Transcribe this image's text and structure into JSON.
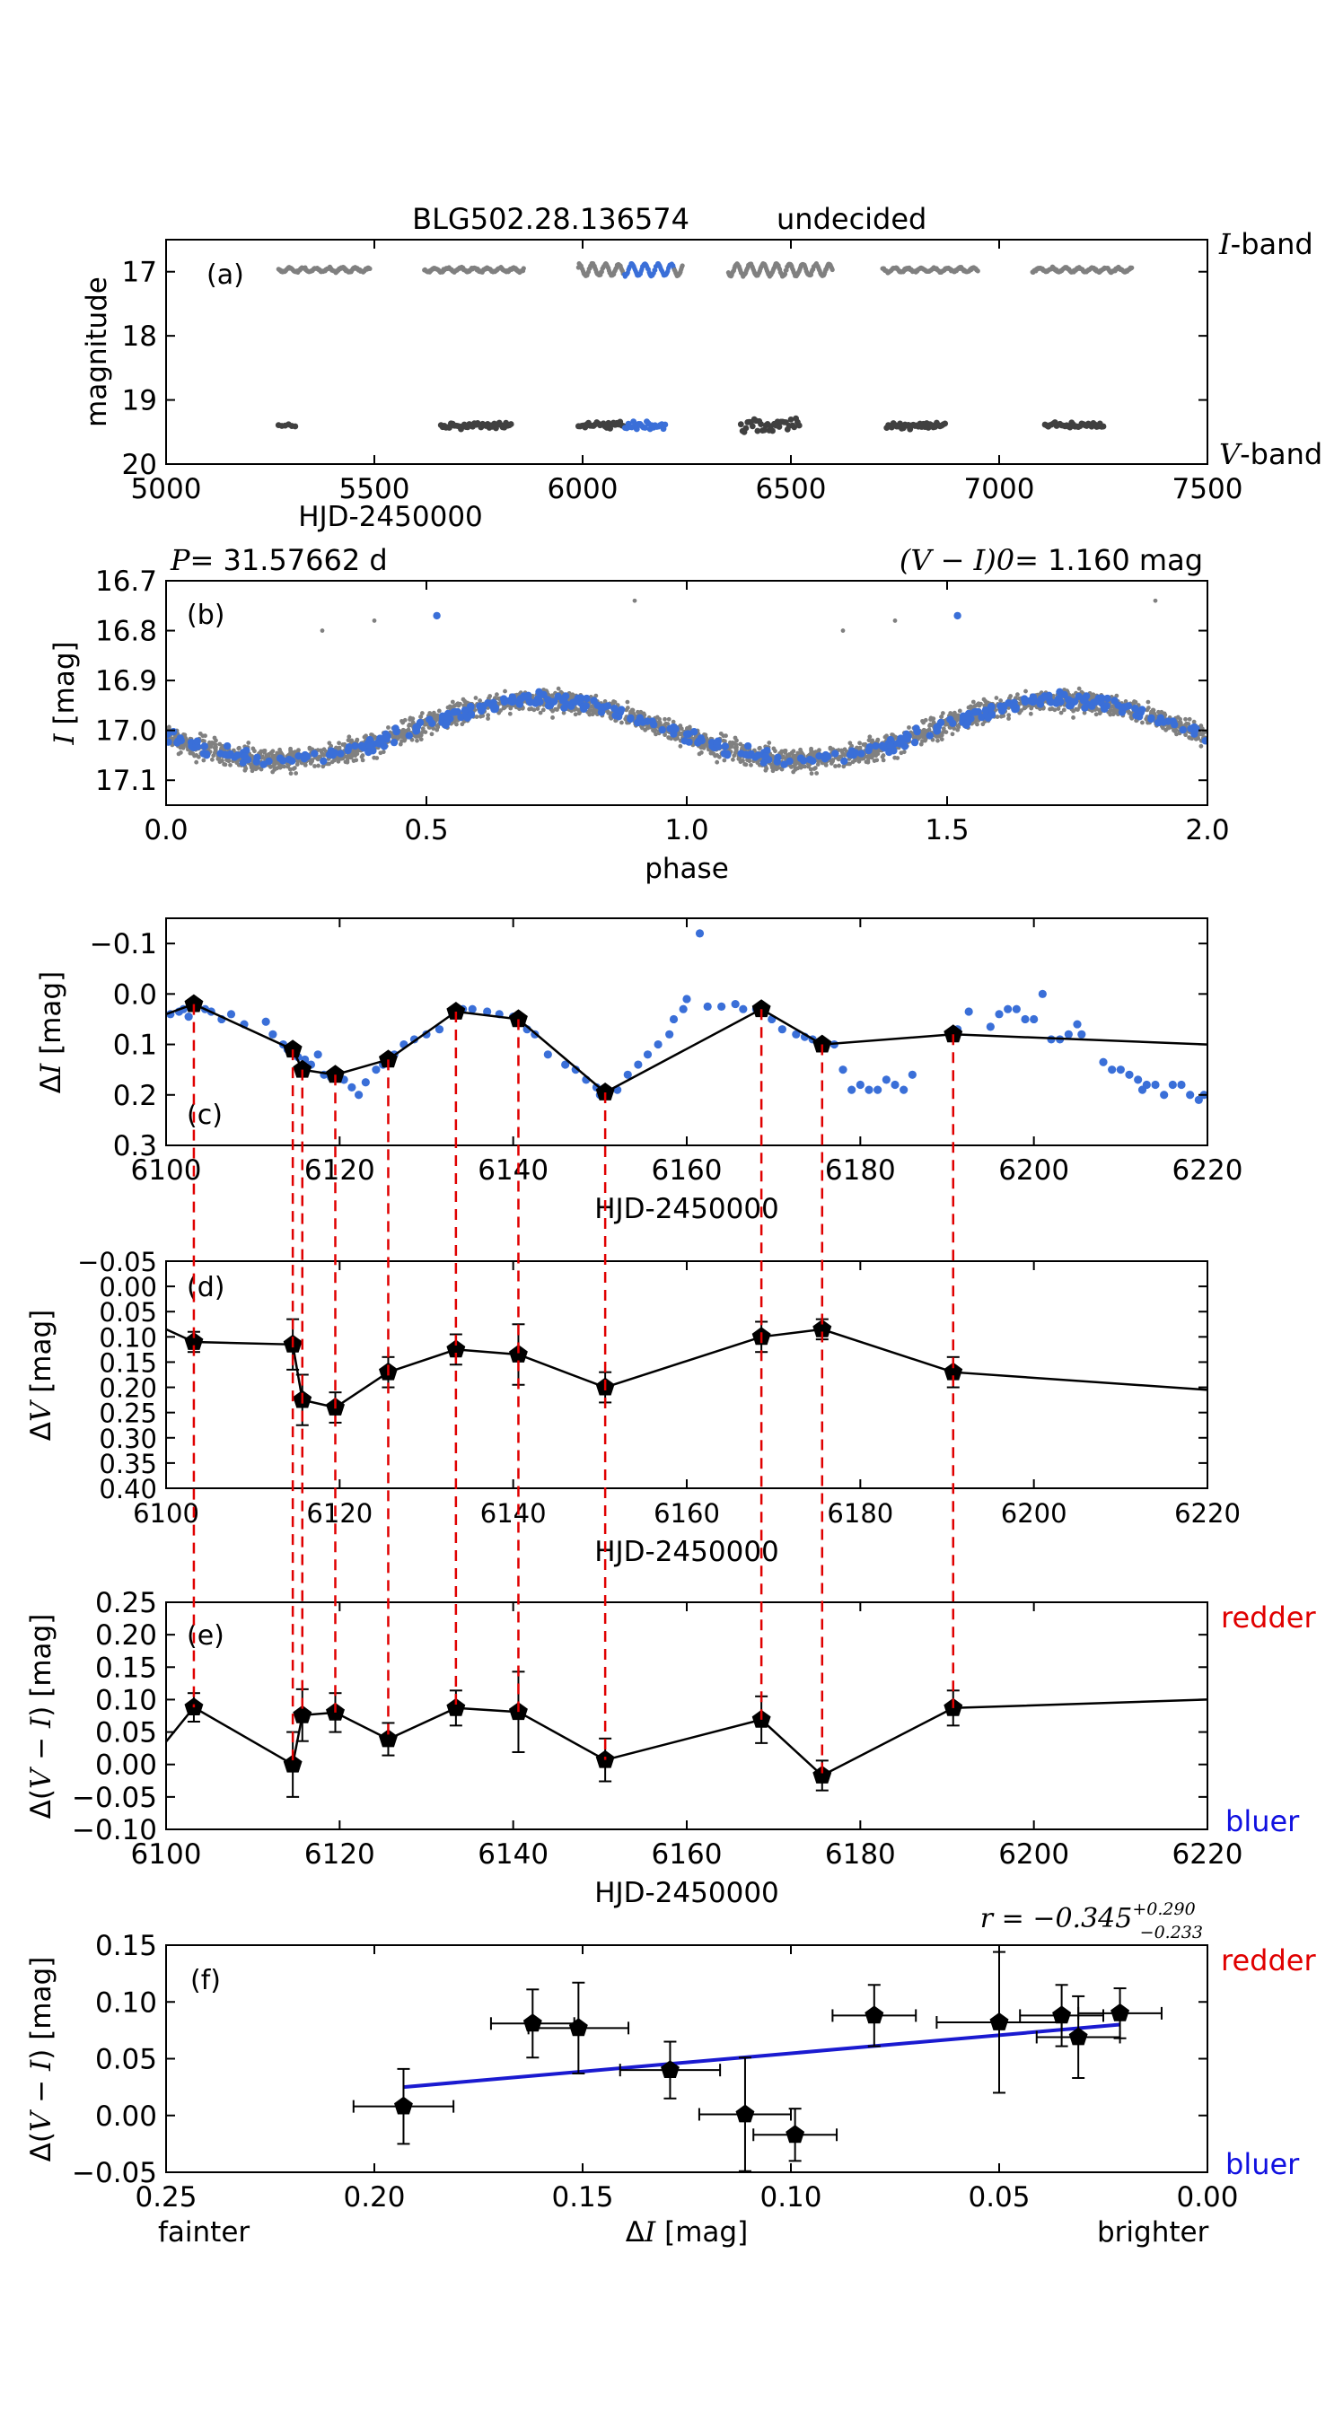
{
  "chart_data": [
    {
      "id": "a",
      "type": "scatter",
      "title": "BLG502.28.136574",
      "status": "undecided",
      "panel_label": "(a)",
      "xlabel": "HJD-2450000",
      "ylabel": "magnitude",
      "xlim": [
        5000,
        7500
      ],
      "ylim": [
        20,
        16.5
      ],
      "inverted_y": true,
      "xticks": [
        "5000",
        "5500",
        "6000",
        "6500",
        "7000",
        "7500"
      ],
      "yticks": [
        "17",
        "18",
        "19",
        "20"
      ],
      "band_labels": [
        "I-band",
        "V-band"
      ],
      "colors": {
        "i_band": "#808080",
        "v_band": "#404040",
        "highlight": "#3a6fd8"
      },
      "seasons_i": [
        [
          5270,
          5490
        ],
        [
          5620,
          5860
        ],
        [
          5990,
          6240
        ],
        [
          6350,
          6600
        ],
        [
          6720,
          6950
        ],
        [
          7080,
          7320
        ]
      ],
      "highlight_window": [
        6100,
        6220
      ],
      "seasons_v": [
        [
          5270,
          5310
        ],
        [
          5660,
          5830
        ],
        [
          5990,
          6200
        ],
        [
          6380,
          6520
        ],
        [
          6730,
          6870
        ],
        [
          7110,
          7250
        ]
      ],
      "i_mean": 16.97,
      "v_mean": 19.4
    },
    {
      "id": "b",
      "type": "scatter",
      "panel_label": "(b)",
      "period_label": "P",
      "period_value": "= 31.57662 d",
      "color_label": "(V − I)0",
      "color_value": "= 1.160 mag",
      "xlabel": "phase",
      "ylabel": "I [mag]",
      "xlim": [
        0,
        2
      ],
      "ylim": [
        17.15,
        16.7
      ],
      "xticks": [
        "0.0",
        "0.5",
        "1.0",
        "1.5",
        "2.0"
      ],
      "yticks": [
        "16.7",
        "16.8",
        "16.9",
        "17.0",
        "17.1"
      ],
      "mean_mag": 17.0,
      "amplitude": 0.06,
      "phase_of_max": 0.72
    },
    {
      "id": "c",
      "type": "line",
      "panel_label": "(c)",
      "xlabel": "HJD-2450000",
      "ylabel": "ΔI [mag]",
      "xlim": [
        6100,
        6220
      ],
      "ylim": [
        0.3,
        -0.15
      ],
      "xticks": [
        "6100",
        "6120",
        "6140",
        "6160",
        "6180",
        "6200",
        "6220"
      ],
      "yticks": [
        "−0.1",
        "0.0",
        "0.1",
        "0.2",
        "0.3"
      ],
      "epochs": [
        {
          "x": 6103.2,
          "y": 0.02
        },
        {
          "x": 6114.6,
          "y": 0.11
        },
        {
          "x": 6115.7,
          "y": 0.15
        },
        {
          "x": 6119.5,
          "y": 0.16
        },
        {
          "x": 6125.6,
          "y": 0.13
        },
        {
          "x": 6133.4,
          "y": 0.035
        },
        {
          "x": 6140.6,
          "y": 0.05
        },
        {
          "x": 6150.6,
          "y": 0.195
        },
        {
          "x": 6168.6,
          "y": 0.03
        },
        {
          "x": 6175.6,
          "y": 0.1
        },
        {
          "x": 6190.7,
          "y": 0.08
        }
      ],
      "line_ends": [
        {
          "x": 6100,
          "y": 0.04
        },
        {
          "x": 6220,
          "y": 0.1
        }
      ],
      "dots": [
        [
          6100.5,
          0.04
        ],
        [
          6101.5,
          0.035
        ],
        [
          6102.0,
          0.03
        ],
        [
          6102.6,
          0.045
        ],
        [
          6103.6,
          0.025
        ],
        [
          6104.5,
          0.03
        ],
        [
          6105.2,
          0.035
        ],
        [
          6106.4,
          0.05
        ],
        [
          6107.5,
          0.04
        ],
        [
          6109.0,
          0.06
        ],
        [
          6111.5,
          0.055
        ],
        [
          6112.3,
          0.08
        ],
        [
          6113.5,
          0.1
        ],
        [
          6114.0,
          0.11
        ],
        [
          6115.2,
          0.125
        ],
        [
          6116.0,
          0.13
        ],
        [
          6116.7,
          0.14
        ],
        [
          6117.5,
          0.12
        ],
        [
          6118.2,
          0.16
        ],
        [
          6119.0,
          0.165
        ],
        [
          6120.5,
          0.17
        ],
        [
          6121.4,
          0.185
        ],
        [
          6122.2,
          0.2
        ],
        [
          6123.0,
          0.175
        ],
        [
          6124.2,
          0.15
        ],
        [
          6125.0,
          0.14
        ],
        [
          6126.3,
          0.12
        ],
        [
          6127.4,
          0.1
        ],
        [
          6128.6,
          0.09
        ],
        [
          6130.0,
          0.08
        ],
        [
          6131.5,
          0.07
        ],
        [
          6133.0,
          0.04
        ],
        [
          6134.2,
          0.03
        ],
        [
          6135.3,
          0.03
        ],
        [
          6137.0,
          0.035
        ],
        [
          6138.4,
          0.04
        ],
        [
          6140.0,
          0.045
        ],
        [
          6141.6,
          0.07
        ],
        [
          6142.5,
          0.08
        ],
        [
          6144.0,
          0.12
        ],
        [
          6146.0,
          0.14
        ],
        [
          6147.2,
          0.15
        ],
        [
          6148.4,
          0.17
        ],
        [
          6149.6,
          0.185
        ],
        [
          6150.0,
          0.2
        ],
        [
          6152.0,
          0.19
        ],
        [
          6153.2,
          0.16
        ],
        [
          6154.4,
          0.14
        ],
        [
          6155.5,
          0.12
        ],
        [
          6156.7,
          0.1
        ],
        [
          6158.0,
          0.08
        ],
        [
          6158.5,
          0.05
        ],
        [
          6159.6,
          0.03
        ],
        [
          6160.0,
          0.01
        ],
        [
          6161.5,
          -0.12
        ],
        [
          6162.4,
          0.025
        ],
        [
          6164.0,
          0.025
        ],
        [
          6165.6,
          0.02
        ],
        [
          6166.5,
          0.03
        ],
        [
          6168.0,
          0.03
        ],
        [
          6169.8,
          0.05
        ],
        [
          6171.0,
          0.07
        ],
        [
          6172.6,
          0.08
        ],
        [
          6173.6,
          0.085
        ],
        [
          6174.5,
          0.09
        ],
        [
          6177.0,
          0.1
        ],
        [
          6178.0,
          0.15
        ],
        [
          6179.0,
          0.19
        ],
        [
          6180.0,
          0.18
        ],
        [
          6181.0,
          0.19
        ],
        [
          6182.0,
          0.19
        ],
        [
          6183.0,
          0.17
        ],
        [
          6184.0,
          0.18
        ],
        [
          6185.0,
          0.19
        ],
        [
          6186.0,
          0.16
        ],
        [
          6191.2,
          0.07
        ],
        [
          6192.5,
          0.035
        ],
        [
          6195.0,
          0.065
        ],
        [
          6196.0,
          0.04
        ],
        [
          6197.0,
          0.03
        ],
        [
          6198.0,
          0.03
        ],
        [
          6199.0,
          0.05
        ],
        [
          6200.0,
          0.05
        ],
        [
          6201.0,
          0.0
        ],
        [
          6202.0,
          0.09
        ],
        [
          6203.0,
          0.09
        ],
        [
          6204.0,
          0.08
        ],
        [
          6205.0,
          0.06
        ],
        [
          6205.5,
          0.08
        ],
        [
          6208.0,
          0.135
        ],
        [
          6209.0,
          0.15
        ],
        [
          6210.0,
          0.15
        ],
        [
          6211.0,
          0.16
        ],
        [
          6212.0,
          0.17
        ],
        [
          6212.5,
          0.19
        ],
        [
          6213.0,
          0.18
        ],
        [
          6214.0,
          0.18
        ],
        [
          6215.0,
          0.2
        ],
        [
          6216.0,
          0.18
        ],
        [
          6217.0,
          0.18
        ],
        [
          6218.0,
          0.2
        ],
        [
          6219.0,
          0.21
        ],
        [
          6219.6,
          0.2
        ]
      ]
    },
    {
      "id": "d",
      "type": "line",
      "panel_label": "(d)",
      "xlabel": "HJD-2450000",
      "ylabel": "ΔV [mag]",
      "xlim": [
        6100,
        6220
      ],
      "ylim": [
        0.4,
        -0.05
      ],
      "xticks": [
        "6100",
        "6120",
        "6140",
        "6160",
        "6180",
        "6200",
        "6220"
      ],
      "yticks": [
        "−0.05",
        "0.00",
        "0.05",
        "0.10",
        "0.15",
        "0.20",
        "0.25",
        "0.30",
        "0.35",
        "0.40"
      ],
      "points": [
        {
          "x": 6103.2,
          "y": 0.11,
          "err": 0.02
        },
        {
          "x": 6114.6,
          "y": 0.115,
          "err": 0.05
        },
        {
          "x": 6115.7,
          "y": 0.225,
          "err": 0.05
        },
        {
          "x": 6119.5,
          "y": 0.24,
          "err": 0.03
        },
        {
          "x": 6125.6,
          "y": 0.17,
          "err": 0.03
        },
        {
          "x": 6133.4,
          "y": 0.125,
          "err": 0.03
        },
        {
          "x": 6140.6,
          "y": 0.135,
          "err": 0.06
        },
        {
          "x": 6150.6,
          "y": 0.2,
          "err": 0.03
        },
        {
          "x": 6168.6,
          "y": 0.1,
          "err": 0.03
        },
        {
          "x": 6175.6,
          "y": 0.085,
          "err": 0.02
        },
        {
          "x": 6190.7,
          "y": 0.17,
          "err": 0.03
        }
      ],
      "line_ends": [
        {
          "x": 6100,
          "y": 0.085
        },
        {
          "x": 6220,
          "y": 0.205
        }
      ]
    },
    {
      "id": "e",
      "type": "line",
      "panel_label": "(e)",
      "xlabel": "HJD-2450000",
      "ylabel": "Δ(V − I) [mag]",
      "xlim": [
        6100,
        6220
      ],
      "ylim": [
        -0.1,
        0.25
      ],
      "xticks": [
        "6100",
        "6120",
        "6140",
        "6160",
        "6180",
        "6200",
        "6220"
      ],
      "yticks": [
        "−0.10",
        "−0.05",
        "0.00",
        "0.05",
        "0.10",
        "0.15",
        "0.20",
        "0.25"
      ],
      "redder_label": "redder",
      "bluer_label": "bluer",
      "points": [
        {
          "x": 6103.2,
          "y": 0.088,
          "err": 0.022
        },
        {
          "x": 6114.6,
          "y": 0.0,
          "err": 0.05
        },
        {
          "x": 6115.7,
          "y": 0.076,
          "err": 0.04
        },
        {
          "x": 6119.5,
          "y": 0.08,
          "err": 0.03
        },
        {
          "x": 6125.6,
          "y": 0.039,
          "err": 0.025
        },
        {
          "x": 6133.4,
          "y": 0.087,
          "err": 0.027
        },
        {
          "x": 6140.6,
          "y": 0.081,
          "err": 0.062
        },
        {
          "x": 6150.6,
          "y": 0.007,
          "err": 0.033
        },
        {
          "x": 6168.6,
          "y": 0.069,
          "err": 0.036
        },
        {
          "x": 6175.6,
          "y": -0.017,
          "err": 0.023
        },
        {
          "x": 6190.7,
          "y": 0.087,
          "err": 0.027
        }
      ],
      "line_ends": [
        {
          "x": 6100,
          "y": 0.035
        },
        {
          "x": 6220,
          "y": 0.1
        }
      ]
    },
    {
      "id": "f",
      "type": "scatter",
      "panel_label": "(f)",
      "xlabel": "ΔI [mag]",
      "ylabel": "Δ(V − I) [mag]",
      "xlim": [
        0.25,
        0.0
      ],
      "ylim": [
        -0.05,
        0.15
      ],
      "xticks": [
        "0.25",
        "0.20",
        "0.15",
        "0.10",
        "0.05",
        "0.00"
      ],
      "yticks": [
        "−0.05",
        "0.00",
        "0.05",
        "0.10",
        "0.15"
      ],
      "fainter_label": "fainter",
      "brighter_label": "brighter",
      "redder_label": "redder",
      "bluer_label": "bluer",
      "r_label": "r = −0.345",
      "r_sup": "+0.290",
      "r_sub": "−0.233",
      "points": [
        {
          "x": 0.193,
          "y": 0.008,
          "xerr": 0.012,
          "yerr": 0.033
        },
        {
          "x": 0.162,
          "y": 0.081,
          "xerr": 0.01,
          "yerr": 0.03
        },
        {
          "x": 0.151,
          "y": 0.077,
          "xerr": 0.012,
          "yerr": 0.04
        },
        {
          "x": 0.129,
          "y": 0.04,
          "xerr": 0.012,
          "yerr": 0.025
        },
        {
          "x": 0.111,
          "y": 0.001,
          "xerr": 0.011,
          "yerr": 0.05
        },
        {
          "x": 0.099,
          "y": -0.017,
          "xerr": 0.01,
          "yerr": 0.023
        },
        {
          "x": 0.08,
          "y": 0.088,
          "xerr": 0.01,
          "yerr": 0.027
        },
        {
          "x": 0.05,
          "y": 0.082,
          "xerr": 0.015,
          "yerr": 0.062
        },
        {
          "x": 0.035,
          "y": 0.088,
          "xerr": 0.01,
          "yerr": 0.027
        },
        {
          "x": 0.031,
          "y": 0.069,
          "xerr": 0.01,
          "yerr": 0.036
        },
        {
          "x": 0.021,
          "y": 0.09,
          "xerr": 0.01,
          "yerr": 0.022
        }
      ],
      "fit_line": [
        {
          "x": 0.193,
          "y": 0.025
        },
        {
          "x": 0.021,
          "y": 0.08
        }
      ],
      "fit_color": "#1a1ad0"
    }
  ],
  "connector_epochs": [
    6103.2,
    6114.6,
    6115.7,
    6119.5,
    6125.6,
    6133.4,
    6140.6,
    6150.6,
    6168.6,
    6175.6,
    6190.7
  ]
}
